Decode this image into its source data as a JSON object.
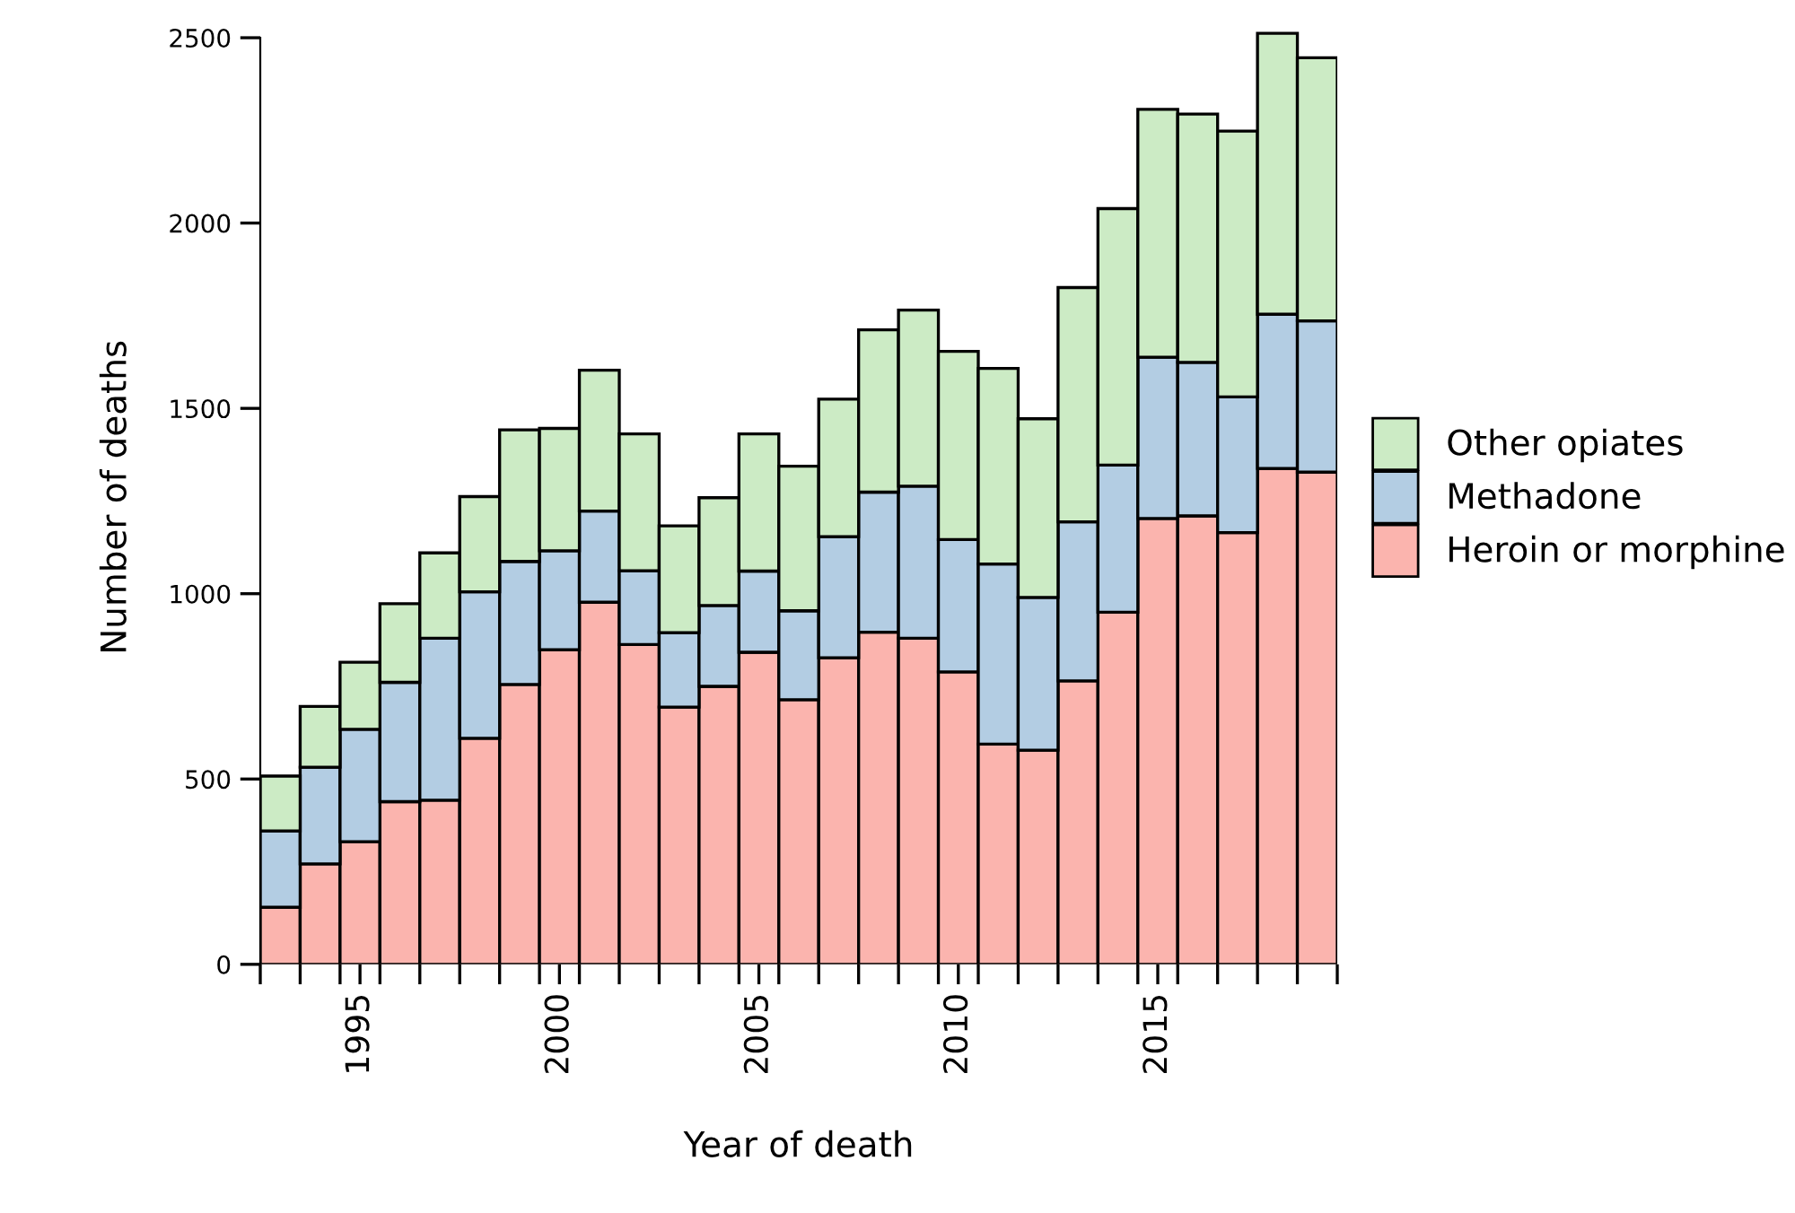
{
  "chart_data": {
    "type": "bar",
    "stacked": true,
    "xlabel": "Year of death",
    "ylabel": "Number of deaths",
    "x": [
      1993,
      1994,
      1995,
      1996,
      1997,
      1998,
      1999,
      2000,
      2001,
      2002,
      2003,
      2004,
      2005,
      2006,
      2007,
      2008,
      2009,
      2010,
      2011,
      2012,
      2013,
      2014,
      2015,
      2016,
      2017,
      2018,
      2019
    ],
    "series": [
      {
        "name": "Heroin or morphine",
        "color": "#fbb4ae",
        "values": [
          154,
          271,
          331,
          439,
          443,
          610,
          755,
          849,
          977,
          863,
          694,
          750,
          842,
          714,
          827,
          896,
          880,
          789,
          594,
          578,
          765,
          950,
          1203,
          1210,
          1165,
          1338,
          1328
        ]
      },
      {
        "name": "Methadone",
        "color": "#b3cde3",
        "values": [
          206,
          261,
          303,
          322,
          437,
          395,
          332,
          267,
          246,
          199,
          201,
          218,
          219,
          240,
          327,
          378,
          410,
          357,
          486,
          412,
          429,
          397,
          435,
          414,
          366,
          416,
          408
        ]
      },
      {
        "name": "Other opiates",
        "color": "#ccebc5",
        "values": [
          148,
          164,
          181,
          212,
          230,
          257,
          355,
          330,
          380,
          369,
          288,
          291,
          370,
          390,
          371,
          438,
          475,
          508,
          528,
          482,
          632,
          692,
          669,
          670,
          717,
          758,
          710
        ]
      }
    ],
    "xlim": [
      1992.5,
      2019.5
    ],
    "xticks": [
      {
        "value": 1992.5,
        "label": null
      },
      {
        "value": 1993.5,
        "label": null
      },
      {
        "value": 1994.5,
        "label": null
      },
      1995,
      {
        "value": 1995.5,
        "label": null
      },
      {
        "value": 1996.5,
        "label": null
      },
      {
        "value": 1997.5,
        "label": null
      },
      {
        "value": 1998.5,
        "label": null
      },
      {
        "value": 1999.5,
        "label": null
      },
      2000,
      {
        "value": 2000.5,
        "label": null
      },
      {
        "value": 2001.5,
        "label": null
      },
      {
        "value": 2002.5,
        "label": null
      },
      {
        "value": 2003.5,
        "label": null
      },
      {
        "value": 2004.5,
        "label": null
      },
      2005,
      {
        "value": 2005.5,
        "label": null
      },
      {
        "value": 2006.5,
        "label": null
      },
      {
        "value": 2007.5,
        "label": null
      },
      {
        "value": 2008.5,
        "label": null
      },
      {
        "value": 2009.5,
        "label": null
      },
      2010,
      {
        "value": 2010.5,
        "label": null
      },
      {
        "value": 2011.5,
        "label": null
      },
      {
        "value": 2012.5,
        "label": null
      },
      {
        "value": 2013.5,
        "label": null
      },
      {
        "value": 2014.5,
        "label": null
      },
      2015,
      {
        "value": 2015.5,
        "label": null
      },
      {
        "value": 2016.5,
        "label": null
      },
      {
        "value": 2017.5,
        "label": null
      },
      {
        "value": 2018.5,
        "label": null
      },
      {
        "value": 2019.5,
        "label": null
      }
    ],
    "ylim": [
      0,
      2520
    ],
    "yticks": [
      0,
      500,
      1000,
      1500,
      2000,
      2500
    ],
    "grid": false,
    "legend": "right"
  }
}
